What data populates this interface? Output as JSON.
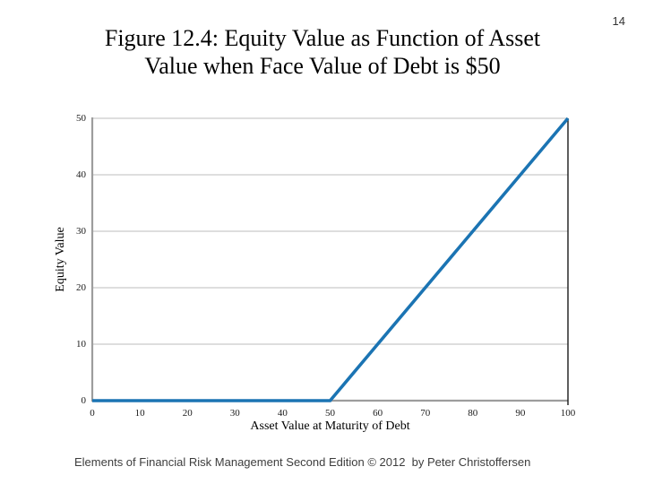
{
  "slide": {
    "page_number": "14",
    "title_line1": "Figure 12.4: Equity Value as Function of Asset",
    "title_line2": "Value when Face Value of Debt is $50",
    "footer": "Elements of Financial Risk Management Second Edition © 2012  by Peter Christoffersen"
  },
  "chart_data": {
    "type": "line",
    "title": "Figure 12.4: Equity Value as Function of Asset Value when Face Value of Debt is $50",
    "xlabel": "Asset Value at Maturity of Debt",
    "ylabel": "Equity Value",
    "xlim": [
      0,
      100
    ],
    "ylim": [
      0,
      50
    ],
    "xticks": [
      0,
      10,
      20,
      30,
      40,
      50,
      60,
      70,
      80,
      90,
      100
    ],
    "yticks": [
      0,
      10,
      20,
      30,
      40,
      50
    ],
    "grid": "horizontal gridlines only",
    "legend": "none",
    "face_value_of_debt": 50,
    "series": [
      {
        "name": "Equity Value",
        "x": [
          0,
          10,
          20,
          30,
          40,
          50,
          60,
          70,
          80,
          90,
          100
        ],
        "y": [
          0,
          0,
          0,
          0,
          0,
          0,
          10,
          20,
          30,
          40,
          50
        ]
      }
    ],
    "colors": {
      "line": "#1b74b3",
      "gridline": "#c9c9c9",
      "axis": "#9d9d9d",
      "right_border": "#1a1a1a",
      "text": "#000000"
    }
  }
}
